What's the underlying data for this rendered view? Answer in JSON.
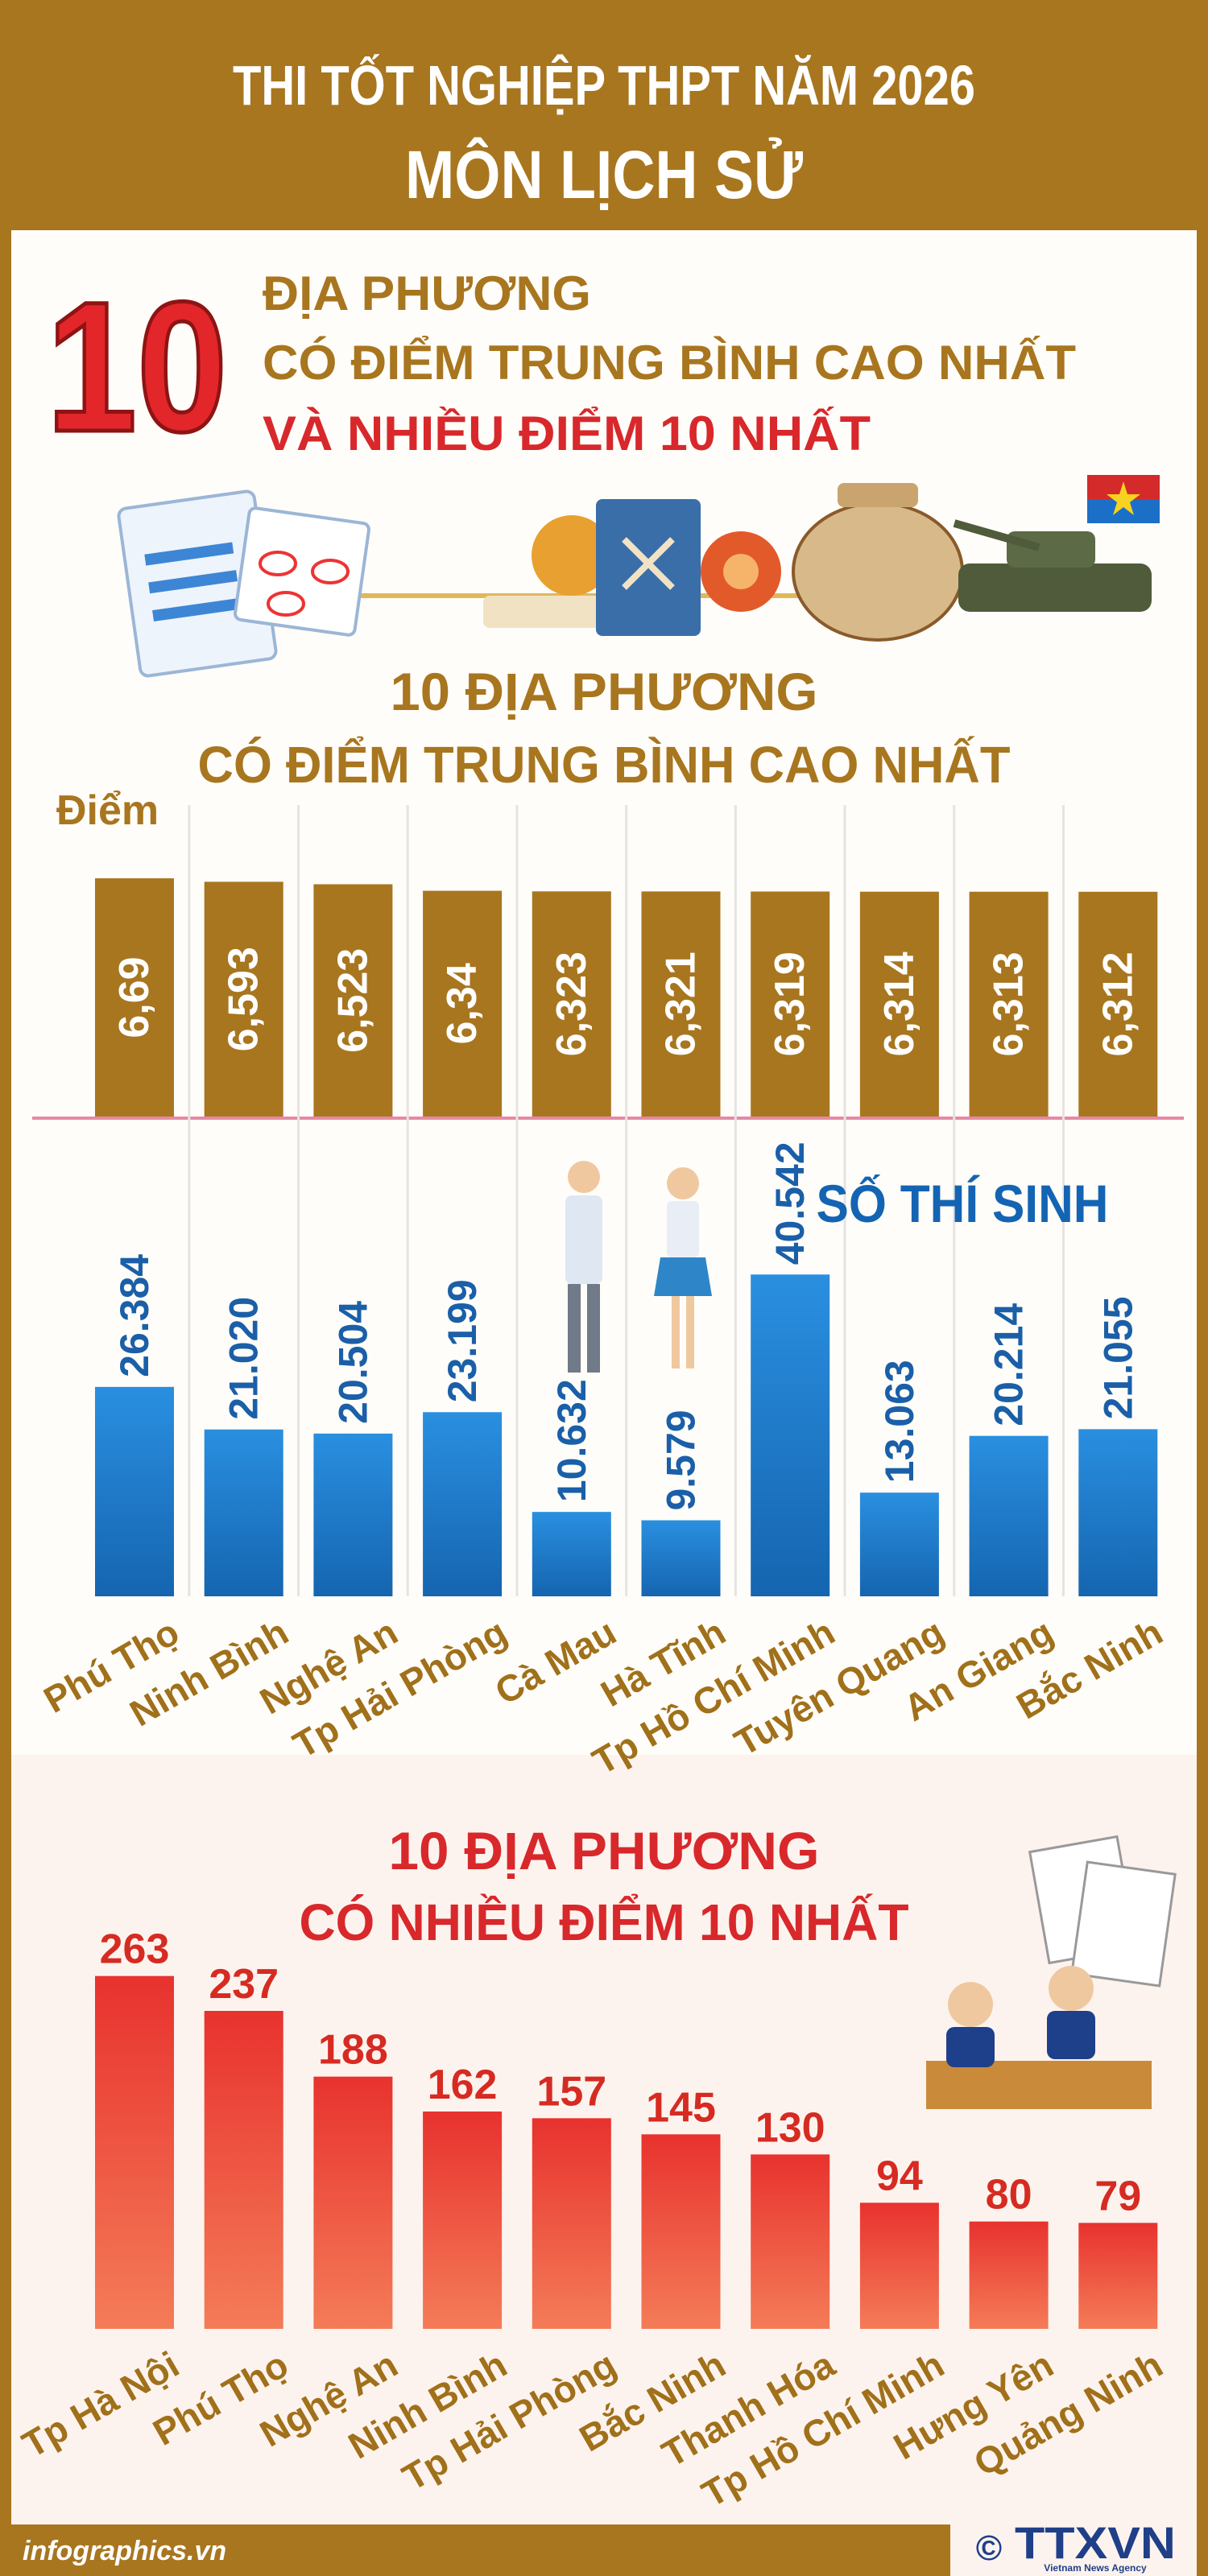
{
  "header": {
    "title": "THI TỐT NGHIỆP THPT NĂM 2026",
    "subtitle": "MÔN LỊCH SỬ"
  },
  "headline": {
    "number": "10",
    "lines": [
      "ĐỊA PHƯƠNG",
      "CÓ ĐIỂM TRUNG BÌNH CAO NHẤT",
      "VÀ NHIỀU ĐIỂM 10 NHẤT"
    ]
  },
  "chart_data": [
    {
      "type": "bar",
      "title": "10 ĐỊA PHƯƠNG",
      "subtitle": "CÓ ĐIỂM TRUNG BÌNH CAO NHẤT",
      "y_label": "Điểm",
      "values": [
        6.69,
        6.593,
        6.523,
        6.34,
        6.323,
        6.321,
        6.319,
        6.314,
        6.313,
        6.312
      ],
      "value_labels": [
        "6,69",
        "6,593",
        "6,523",
        "6,34",
        "6,323",
        "6,321",
        "6,319",
        "6,314",
        "6,313",
        "6,312"
      ],
      "color": "#a8761f",
      "ylim": [
        0,
        8.5
      ]
    },
    {
      "type": "bar",
      "title": "SỐ THÍ SINH",
      "categories": [
        "Phú Thọ",
        "Ninh Bình",
        "Nghệ An",
        "Tp Hải Phòng",
        "Cà Mau",
        "Hà Tĩnh",
        "Tp Hồ Chí Minh",
        "Tuyên Quang",
        "An Giang",
        "Bắc Ninh"
      ],
      "values": [
        26384,
        21020,
        20504,
        23199,
        10632,
        9579,
        40542,
        13063,
        20214,
        21055
      ],
      "value_labels": [
        "26.384",
        "21.020",
        "20.504",
        "23.199",
        "10.632",
        "9.579",
        "40.542",
        "13.063",
        "20.214",
        "21.055"
      ],
      "color": "#1f7fcf",
      "ylim": [
        0,
        50000
      ]
    },
    {
      "type": "bar",
      "title": "10 ĐỊA PHƯƠNG",
      "subtitle": "CÓ NHIỀU ĐIỂM 10 NHẤT",
      "categories": [
        "Tp Hà Nội",
        "Phú Thọ",
        "Nghệ An",
        "Ninh Bình",
        "Tp Hải Phòng",
        "Bắc Ninh",
        "Thanh Hóa",
        "Tp Hồ Chí Minh",
        "Hưng Yên",
        "Quảng Ninh"
      ],
      "values": [
        263,
        237,
        188,
        162,
        157,
        145,
        130,
        94,
        80,
        79
      ],
      "color": "#ee4a3a",
      "ylim": [
        0,
        300
      ]
    }
  ],
  "footer": {
    "source": "infographics.vn",
    "copyright": "©",
    "agency": "TTXVN",
    "agency_subtitle": "Vietnam News Agency"
  }
}
